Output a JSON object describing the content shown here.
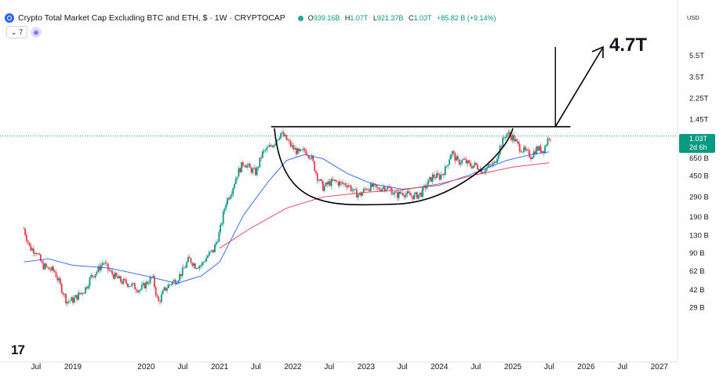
{
  "header": {
    "title": "Crypto Total Market Cap Excluding BTC and ETH, $ · 1W · CRYPTOCAP",
    "ohlc": {
      "o_label": "O",
      "o": "939.16B",
      "h_label": "H",
      "h": "1.07T",
      "l_label": "L",
      "l": "921.37B",
      "c_label": "C",
      "c": "1.03T",
      "change": "+85.82 B (+9.14%)"
    },
    "indicator_count": "7",
    "indicator_icon": "eye-icon"
  },
  "currency": "USD",
  "price_tag": {
    "value": "1.03T",
    "countdown": "2d 6h"
  },
  "annotation_label": "4.7T",
  "colors": {
    "candle_up": "#089981",
    "candle_down": "#f23645",
    "ma_blue": "#2962ff",
    "ma_red": "#f23645",
    "drawing": "#000000",
    "price_line": "#089981"
  },
  "chart_data": {
    "type": "candlestick",
    "y_scale": "log",
    "y_axis_ticks": [
      "5.5T",
      "3.5T",
      "2.25T",
      "1.45T",
      "1.03T",
      "650 B",
      "450 B",
      "290 B",
      "190 B",
      "130 B",
      "90 B",
      "62 B",
      "42 B",
      "29 B"
    ],
    "x_axis_ticks": [
      "Jul",
      "2019",
      "2020",
      "Jul",
      "2021",
      "Jul",
      "2022",
      "Jul",
      "2023",
      "Jul",
      "2024",
      "Jul",
      "2025",
      "Jul",
      "2026",
      "Jul",
      "2027"
    ],
    "current_close": "1.03T",
    "weekly_closes": [
      {
        "date": "2018-05-01",
        "close": 150
      },
      {
        "date": "2018-06-01",
        "close": 100
      },
      {
        "date": "2018-07-01",
        "close": 95
      },
      {
        "date": "2018-08-01",
        "close": 70
      },
      {
        "date": "2018-09-01",
        "close": 65
      },
      {
        "date": "2018-10-01",
        "close": 62
      },
      {
        "date": "2018-11-01",
        "close": 45
      },
      {
        "date": "2018-12-01",
        "close": 33
      },
      {
        "date": "2019-01-01",
        "close": 34
      },
      {
        "date": "2019-02-01",
        "close": 38
      },
      {
        "date": "2019-03-01",
        "close": 42
      },
      {
        "date": "2019-04-01",
        "close": 55
      },
      {
        "date": "2019-05-01",
        "close": 62
      },
      {
        "date": "2019-06-01",
        "close": 75
      },
      {
        "date": "2019-07-01",
        "close": 62
      },
      {
        "date": "2019-08-01",
        "close": 55
      },
      {
        "date": "2019-09-01",
        "close": 50
      },
      {
        "date": "2019-10-01",
        "close": 48
      },
      {
        "date": "2019-11-01",
        "close": 45
      },
      {
        "date": "2019-12-01",
        "close": 42
      },
      {
        "date": "2020-01-01",
        "close": 48
      },
      {
        "date": "2020-02-01",
        "close": 55
      },
      {
        "date": "2020-03-01",
        "close": 32
      },
      {
        "date": "2020-04-01",
        "close": 42
      },
      {
        "date": "2020-05-01",
        "close": 48
      },
      {
        "date": "2020-06-01",
        "close": 52
      },
      {
        "date": "2020-07-01",
        "close": 62
      },
      {
        "date": "2020-08-01",
        "close": 80
      },
      {
        "date": "2020-09-01",
        "close": 70
      },
      {
        "date": "2020-10-01",
        "close": 70
      },
      {
        "date": "2020-11-01",
        "close": 85
      },
      {
        "date": "2020-12-01",
        "close": 95
      },
      {
        "date": "2021-01-01",
        "close": 140
      },
      {
        "date": "2021-02-01",
        "close": 260
      },
      {
        "date": "2021-03-01",
        "close": 330
      },
      {
        "date": "2021-04-01",
        "close": 480
      },
      {
        "date": "2021-05-01",
        "close": 600
      },
      {
        "date": "2021-06-01",
        "close": 520
      },
      {
        "date": "2021-07-01",
        "close": 480
      },
      {
        "date": "2021-08-01",
        "close": 720
      },
      {
        "date": "2021-09-01",
        "close": 800
      },
      {
        "date": "2021-10-01",
        "close": 900
      },
      {
        "date": "2021-11-01",
        "close": 1100
      },
      {
        "date": "2021-12-01",
        "close": 950
      },
      {
        "date": "2022-01-01",
        "close": 800
      },
      {
        "date": "2022-02-01",
        "close": 720
      },
      {
        "date": "2022-03-01",
        "close": 760
      },
      {
        "date": "2022-04-01",
        "close": 680
      },
      {
        "date": "2022-05-01",
        "close": 450
      },
      {
        "date": "2022-06-01",
        "close": 350
      },
      {
        "date": "2022-07-01",
        "close": 390
      },
      {
        "date": "2022-08-01",
        "close": 400
      },
      {
        "date": "2022-09-01",
        "close": 380
      },
      {
        "date": "2022-10-01",
        "close": 380
      },
      {
        "date": "2022-11-01",
        "close": 320
      },
      {
        "date": "2022-12-01",
        "close": 300
      },
      {
        "date": "2023-01-01",
        "close": 350
      },
      {
        "date": "2023-02-01",
        "close": 360
      },
      {
        "date": "2023-03-01",
        "close": 340
      },
      {
        "date": "2023-04-01",
        "close": 360
      },
      {
        "date": "2023-05-01",
        "close": 340
      },
      {
        "date": "2023-06-01",
        "close": 300
      },
      {
        "date": "2023-07-01",
        "close": 320
      },
      {
        "date": "2023-08-01",
        "close": 300
      },
      {
        "date": "2023-09-01",
        "close": 295
      },
      {
        "date": "2023-10-01",
        "close": 310
      },
      {
        "date": "2023-11-01",
        "close": 380
      },
      {
        "date": "2023-12-01",
        "close": 450
      },
      {
        "date": "2024-01-01",
        "close": 440
      },
      {
        "date": "2024-02-01",
        "close": 520
      },
      {
        "date": "2024-03-01",
        "close": 750
      },
      {
        "date": "2024-04-01",
        "close": 600
      },
      {
        "date": "2024-05-01",
        "close": 620
      },
      {
        "date": "2024-06-01",
        "close": 560
      },
      {
        "date": "2024-07-01",
        "close": 560
      },
      {
        "date": "2024-08-01",
        "close": 500
      },
      {
        "date": "2024-09-01",
        "close": 540
      },
      {
        "date": "2024-10-01",
        "close": 580
      },
      {
        "date": "2024-11-01",
        "close": 850
      },
      {
        "date": "2024-12-01",
        "close": 1100
      },
      {
        "date": "2025-01-01",
        "close": 1000
      },
      {
        "date": "2025-02-01",
        "close": 820
      },
      {
        "date": "2025-03-01",
        "close": 750
      },
      {
        "date": "2025-04-01",
        "close": 680
      },
      {
        "date": "2025-05-01",
        "close": 800
      },
      {
        "date": "2025-06-01",
        "close": 760
      },
      {
        "date": "2025-07-01",
        "close": 1030
      }
    ],
    "blue_ma": [
      {
        "date": "2018-05-01",
        "value": 75
      },
      {
        "date": "2018-09-01",
        "value": 80
      },
      {
        "date": "2019-01-01",
        "value": 70
      },
      {
        "date": "2019-07-01",
        "value": 66
      },
      {
        "date": "2020-01-01",
        "value": 56
      },
      {
        "date": "2020-06-01",
        "value": 48
      },
      {
        "date": "2020-10-01",
        "value": 56
      },
      {
        "date": "2021-01-01",
        "value": 75
      },
      {
        "date": "2021-05-01",
        "value": 200
      },
      {
        "date": "2021-09-01",
        "value": 400
      },
      {
        "date": "2021-12-01",
        "value": 620
      },
      {
        "date": "2022-03-01",
        "value": 700
      },
      {
        "date": "2022-06-01",
        "value": 640
      },
      {
        "date": "2022-10-01",
        "value": 470
      },
      {
        "date": "2023-02-01",
        "value": 380
      },
      {
        "date": "2023-07-01",
        "value": 340
      },
      {
        "date": "2024-01-01",
        "value": 370
      },
      {
        "date": "2024-06-01",
        "value": 460
      },
      {
        "date": "2024-12-01",
        "value": 620
      },
      {
        "date": "2025-04-01",
        "value": 700
      },
      {
        "date": "2025-07-01",
        "value": 740
      }
    ],
    "red_ma": [
      {
        "date": "2021-01-01",
        "value": 100
      },
      {
        "date": "2021-06-01",
        "value": 150
      },
      {
        "date": "2021-12-01",
        "value": 230
      },
      {
        "date": "2022-06-01",
        "value": 290
      },
      {
        "date": "2023-01-01",
        "value": 320
      },
      {
        "date": "2023-07-01",
        "value": 335
      },
      {
        "date": "2024-01-01",
        "value": 380
      },
      {
        "date": "2024-07-01",
        "value": 460
      },
      {
        "date": "2025-01-01",
        "value": 540
      },
      {
        "date": "2025-07-01",
        "value": 590
      }
    ],
    "drawings": {
      "neckline": {
        "start_date": "2021-09-15",
        "end_date": "2025-10-15",
        "value": 1250
      },
      "cup": {
        "start_date": "2021-10-01",
        "bottom_date": "2023-06-01",
        "end_date": "2025-01-01",
        "bottom_value": 250
      },
      "target_arrow": {
        "base_date": "2025-08-01",
        "base_value": 1250,
        "tip_value": 4700,
        "target": "4.7T"
      }
    }
  }
}
